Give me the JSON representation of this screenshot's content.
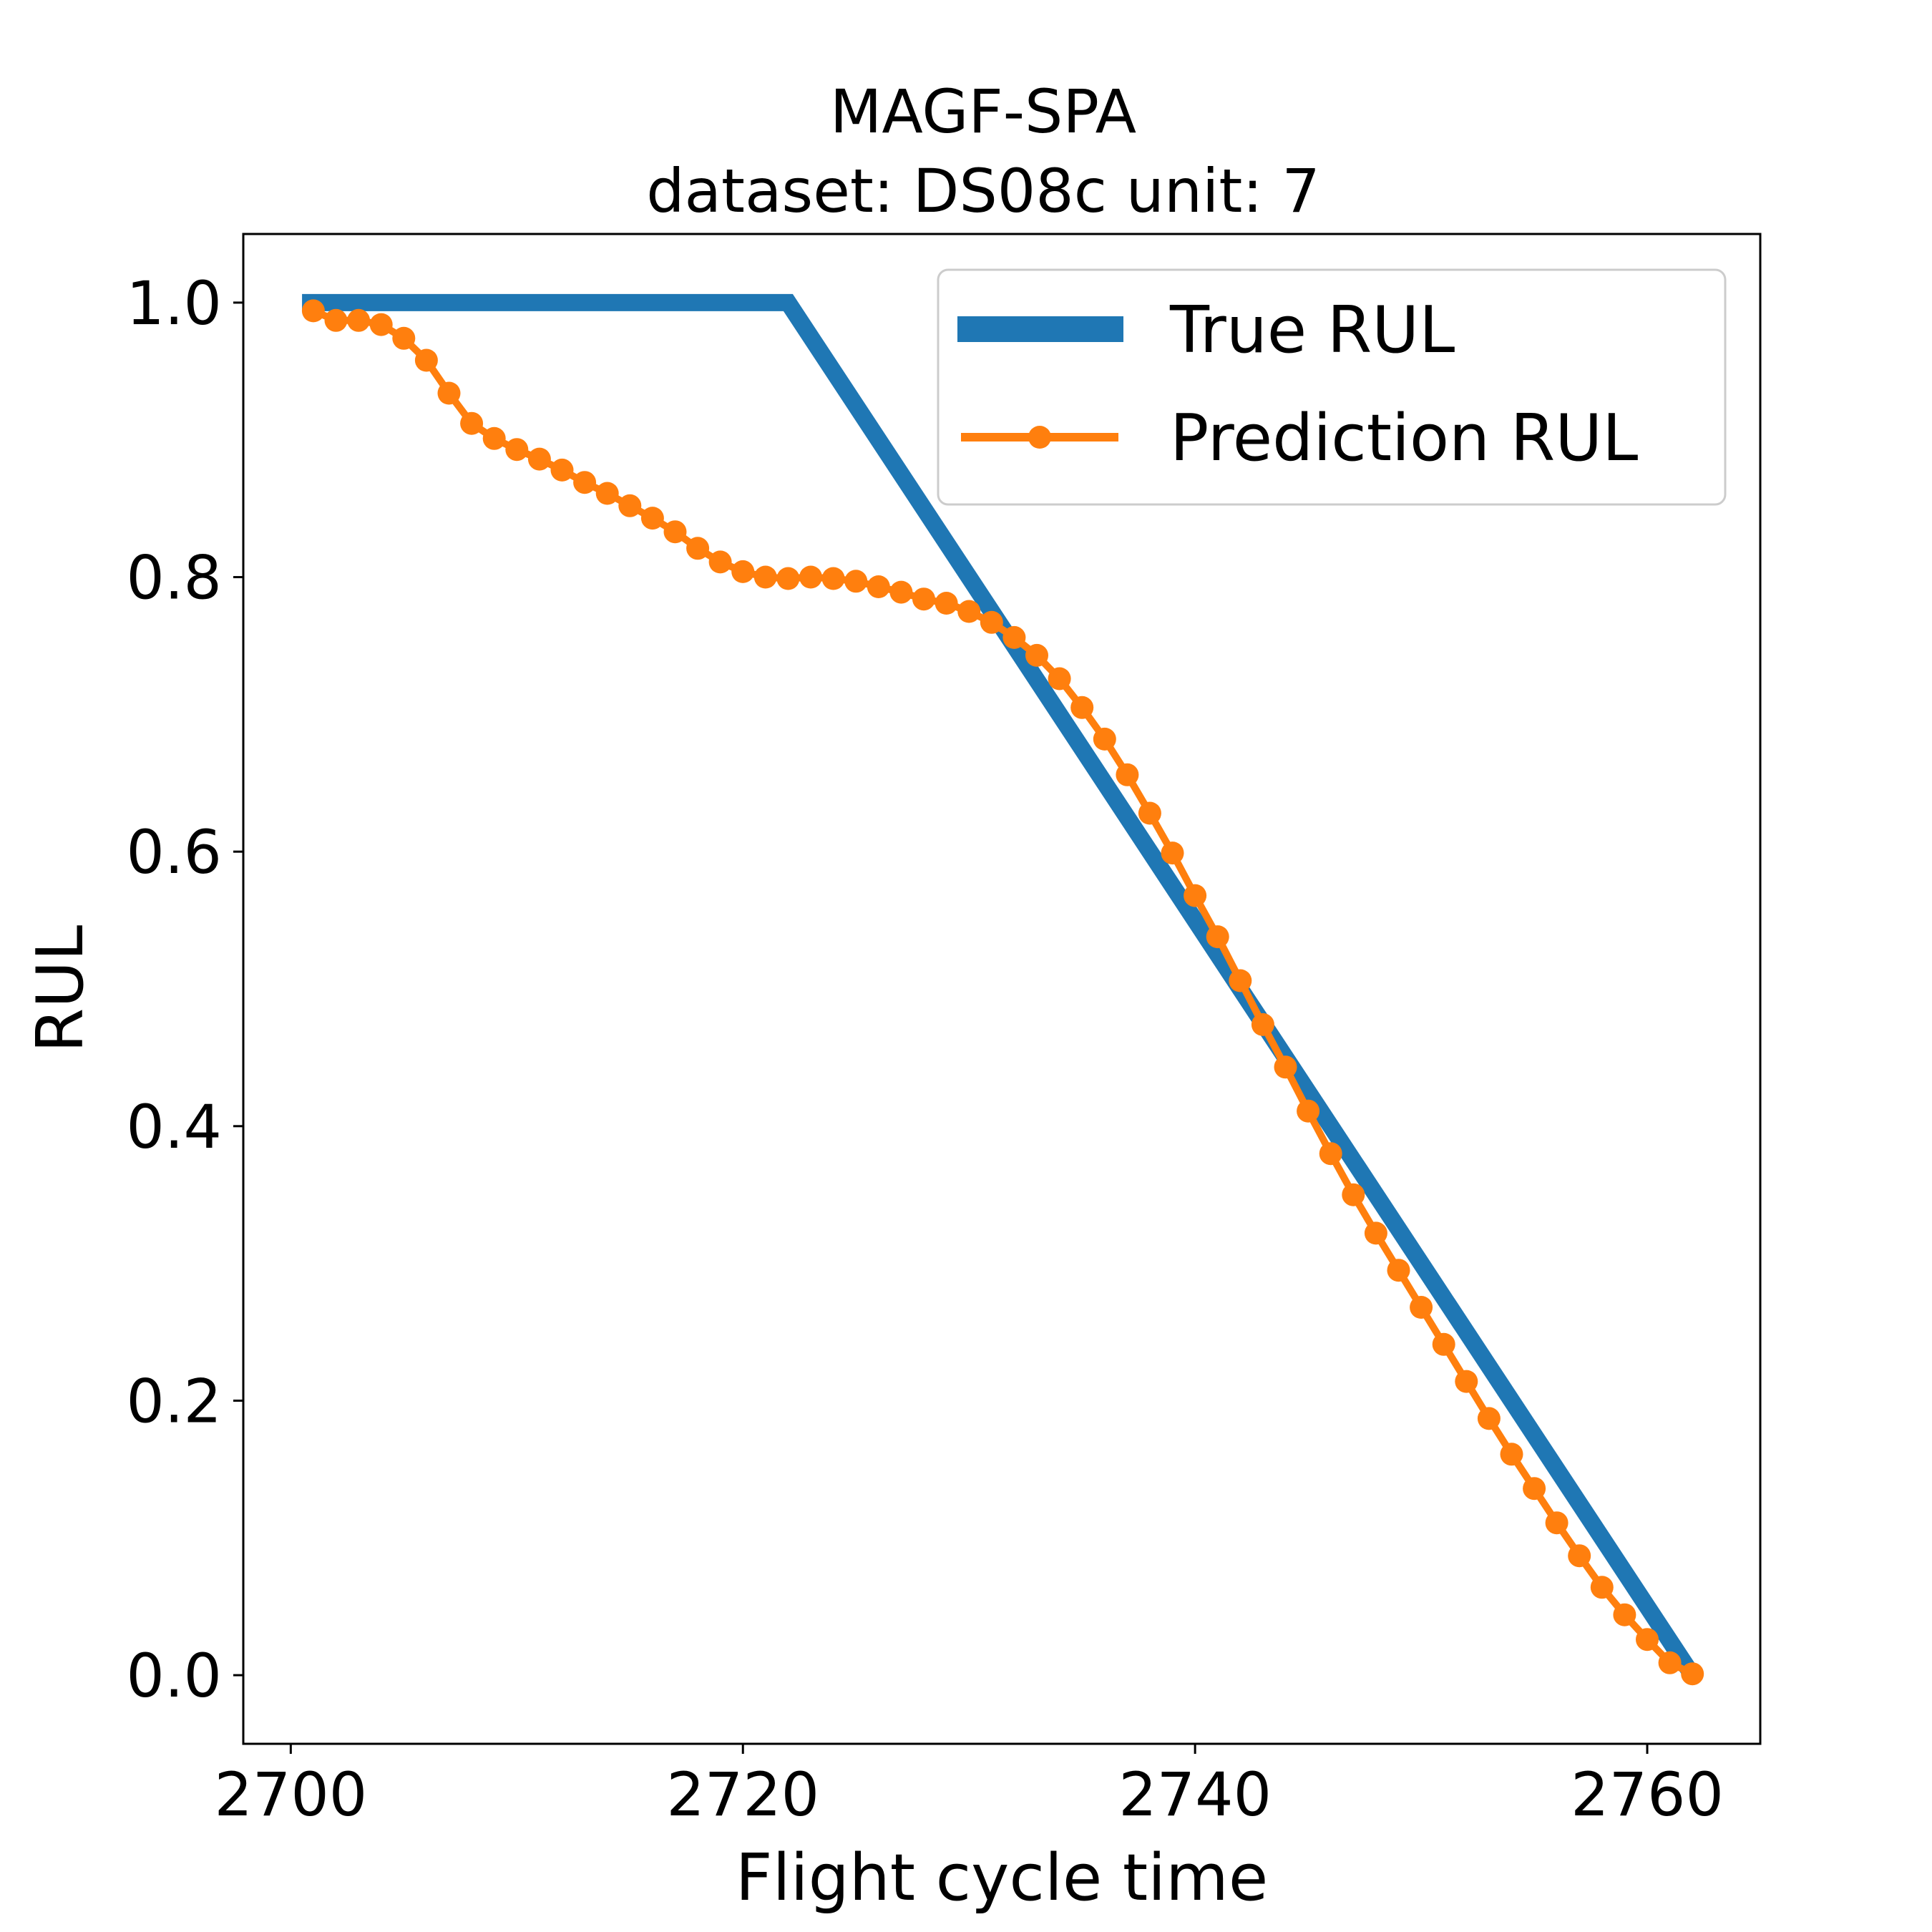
{
  "chart_data": {
    "type": "line",
    "title": "MAGF-SPA",
    "subtitle": "dataset: DS08c unit: 7",
    "xlabel": "Flight cycle time",
    "ylabel": "RUL",
    "xlim": [
      2697.9,
      2765.0
    ],
    "ylim": [
      -0.05,
      1.05
    ],
    "xticks": [
      2700,
      2720,
      2740,
      2760
    ],
    "yticks": [
      0.0,
      0.2,
      0.4,
      0.6,
      0.8,
      1.0
    ],
    "xtick_labels": [
      "2700",
      "2720",
      "2740",
      "2760"
    ],
    "ytick_labels": [
      "0.0",
      "0.2",
      "0.4",
      "0.6",
      "0.8",
      "1.0"
    ],
    "grid": false,
    "legend_position": "top-right",
    "series": [
      {
        "name": "True RUL",
        "color": "#1f77b4",
        "marker": "none",
        "x": [
          2700.5,
          2722.0,
          2762.0
        ],
        "y": [
          1.0,
          1.0,
          0.0
        ]
      },
      {
        "name": "Prediction RUL",
        "color": "#ff7f0e",
        "marker": "circle",
        "x": [
          2701,
          2702,
          2703,
          2704,
          2705,
          2706,
          2707,
          2708,
          2709,
          2710,
          2711,
          2712,
          2713,
          2714,
          2715,
          2716,
          2717,
          2718,
          2719,
          2720,
          2721,
          2722,
          2723,
          2724,
          2725,
          2726,
          2727,
          2728,
          2729,
          2730,
          2731,
          2732,
          2733,
          2734,
          2735,
          2736,
          2737,
          2738,
          2739,
          2740,
          2741,
          2742,
          2743,
          2744,
          2745,
          2746,
          2747,
          2748,
          2749,
          2750,
          2751,
          2752,
          2753,
          2754,
          2755,
          2756,
          2757,
          2758,
          2759,
          2760,
          2761,
          2762
        ],
        "y": [
          0.994,
          0.987,
          0.987,
          0.984,
          0.974,
          0.958,
          0.934,
          0.912,
          0.901,
          0.893,
          0.886,
          0.878,
          0.869,
          0.861,
          0.852,
          0.843,
          0.833,
          0.821,
          0.811,
          0.804,
          0.8,
          0.799,
          0.8,
          0.799,
          0.797,
          0.793,
          0.789,
          0.784,
          0.781,
          0.775,
          0.767,
          0.756,
          0.743,
          0.726,
          0.705,
          0.682,
          0.656,
          0.628,
          0.599,
          0.568,
          0.538,
          0.506,
          0.474,
          0.443,
          0.411,
          0.38,
          0.35,
          0.322,
          0.295,
          0.268,
          0.241,
          0.214,
          0.187,
          0.161,
          0.136,
          0.111,
          0.087,
          0.064,
          0.044,
          0.026,
          0.009,
          0.001
        ]
      }
    ]
  }
}
